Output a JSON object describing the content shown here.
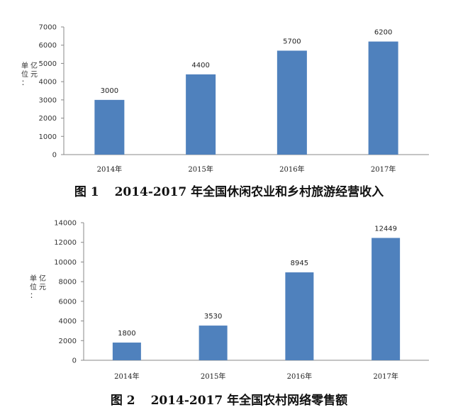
{
  "chart_data": [
    {
      "type": "bar",
      "title": "2014-2017 年全国休闲农业和乡村旅游经营收入",
      "figure_label": "图 1",
      "ylabel": "单位：亿元",
      "categories": [
        "2014年",
        "2015年",
        "2016年",
        "2017年"
      ],
      "values": [
        3000,
        4400,
        5700,
        6200
      ],
      "data_labels": [
        "3000",
        "4400",
        "5700",
        "6200"
      ],
      "ylim": [
        0,
        7000
      ],
      "yticks": [
        "0",
        "1000",
        "2000",
        "3000",
        "4000",
        "5000",
        "6000",
        "7000"
      ],
      "grid": false,
      "bar_color": "#4F81BD"
    },
    {
      "type": "bar",
      "title": "2014-2017 年全国农村网络零售额",
      "figure_label": "图 2",
      "ylabel": "单位：亿元",
      "categories": [
        "2014年",
        "2015年",
        "2016年",
        "2017年"
      ],
      "values": [
        1800,
        3530,
        8945,
        12449
      ],
      "data_labels": [
        "1800",
        "3530",
        "8945",
        "12449"
      ],
      "ylim": [
        0,
        14000
      ],
      "yticks": [
        "0",
        "2000",
        "4000",
        "6000",
        "8000",
        "10000",
        "12000",
        "14000"
      ],
      "grid": false,
      "bar_color": "#4F81BD"
    }
  ]
}
